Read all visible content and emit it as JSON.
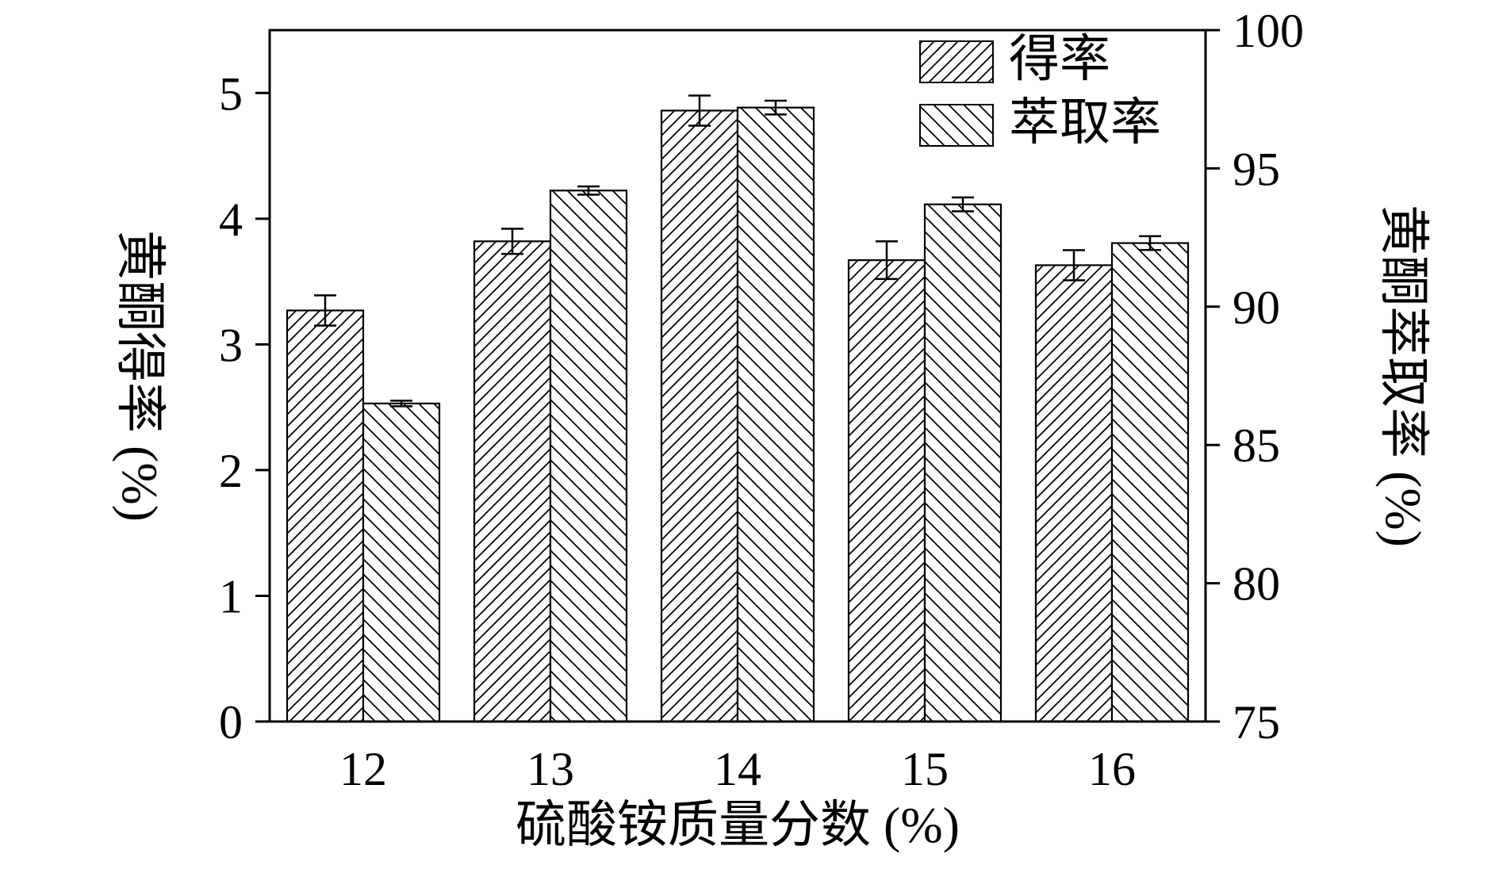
{
  "chart_data": {
    "type": "bar",
    "title": "",
    "categories": [
      "12",
      "13",
      "14",
      "15",
      "16"
    ],
    "xlabel": "硫酸铵质量分数 (%)",
    "axes": {
      "left": {
        "label": "黄酮得率 (%)",
        "ticks": [
          0,
          1,
          2,
          3,
          4,
          5
        ],
        "range": [
          0,
          5.5
        ]
      },
      "right": {
        "label": "黄酮萃取率 (%)",
        "ticks": [
          75,
          80,
          85,
          90,
          95,
          100
        ],
        "range": [
          75,
          100
        ]
      }
    },
    "series": [
      {
        "name": "得率",
        "axis": "left",
        "hatch": "forward",
        "values": [
          3.27,
          3.82,
          4.86,
          3.67,
          3.63
        ],
        "errors": [
          0.12,
          0.1,
          0.12,
          0.15,
          0.12
        ]
      },
      {
        "name": "萃取率",
        "axis": "right",
        "hatch": "backward",
        "values": [
          86.5,
          94.2,
          97.2,
          93.7,
          92.3
        ],
        "errors": [
          0.1,
          0.15,
          0.25,
          0.25,
          0.25
        ]
      }
    ],
    "legend": {
      "position": "top-right",
      "entries": [
        "得率",
        "萃取率"
      ]
    },
    "grid": "off",
    "colors": {
      "stroke": "#000000",
      "background": "#ffffff"
    }
  }
}
